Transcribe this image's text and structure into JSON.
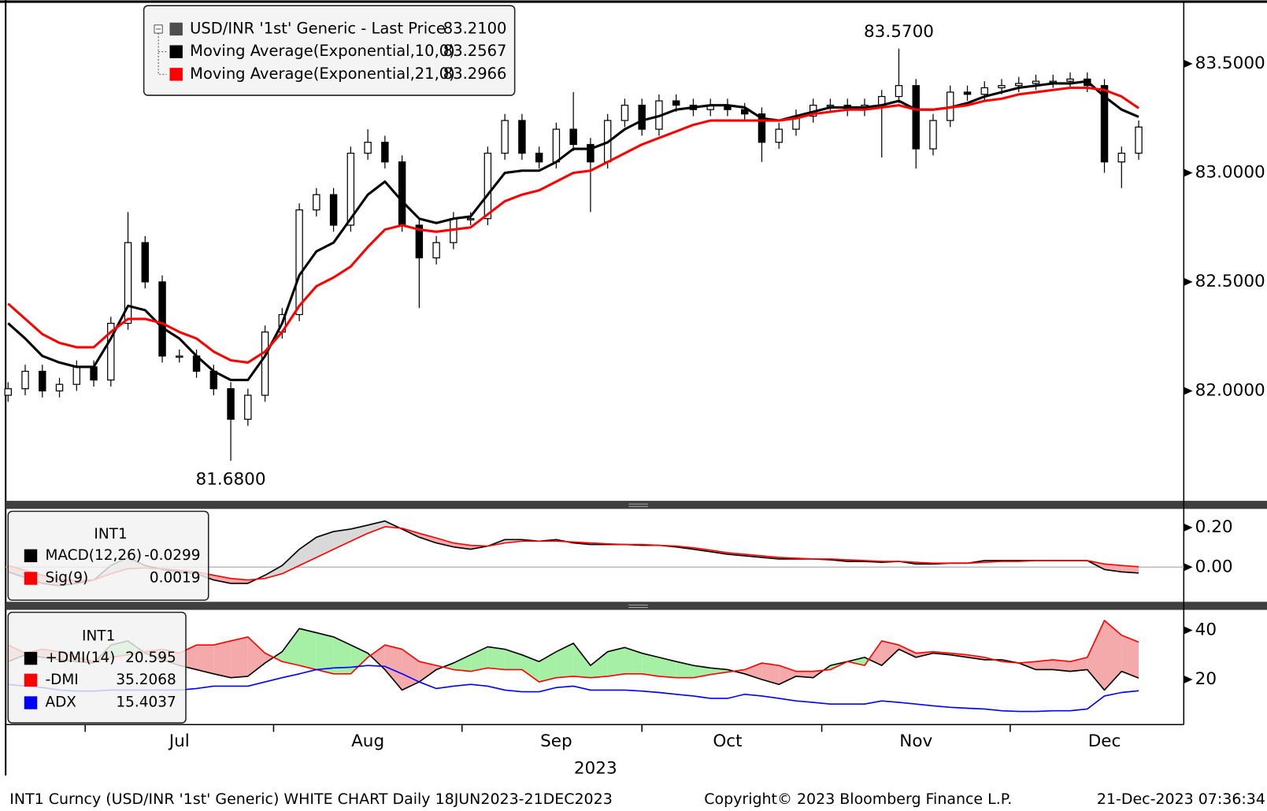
{
  "chart_data": [
    {
      "type": "candlestick",
      "categories": [
        null,
        null,
        null,
        null,
        null,
        null,
        null,
        null,
        null,
        null,
        "Jul",
        null,
        null,
        null,
        null,
        null,
        null,
        null,
        null,
        null,
        null,
        "Aug",
        null,
        null,
        null,
        null,
        null,
        null,
        null,
        null,
        null,
        null,
        "Sep",
        null,
        null,
        null,
        null,
        null,
        null,
        null,
        null,
        null,
        "Oct",
        null,
        null,
        null,
        null,
        null,
        null,
        null,
        null,
        null,
        null,
        "Nov",
        null,
        null,
        null,
        null,
        null,
        null,
        null,
        null,
        null,
        null,
        "Dec",
        null,
        null
      ],
      "x_label": "2023",
      "ylim": [
        81.496,
        83.774
      ],
      "yticks": [
        {
          "value": 82,
          "label": "82.0000"
        },
        {
          "value": 82.5,
          "label": "82.5000"
        },
        {
          "value": 83,
          "label": "83.0000"
        },
        {
          "value": 83.5,
          "label": "83.5000"
        }
      ],
      "annotations": [
        {
          "label": "83.5700",
          "value": 83.57
        },
        {
          "label": "81.6800",
          "value": 81.68
        }
      ],
      "series": [
        {
          "name": "USD/INR '1st' Generic - Last Price",
          "color": "#4d4d4d",
          "last_label": "83.2100",
          "open": [
            81.98,
            82.01,
            82.09,
            82.0,
            82.03,
            82.11,
            82.05,
            82.31,
            82.68,
            82.5,
            82.16,
            82.16,
            82.09,
            82.01,
            81.87,
            81.98,
            82.27,
            82.35,
            82.83,
            82.9,
            82.76,
            83.09,
            83.14,
            83.05,
            82.76,
            82.61,
            82.68,
            82.79,
            82.79,
            83.09,
            83.24,
            83.09,
            83.05,
            83.2,
            83.13,
            83.05,
            83.24,
            83.31,
            83.2,
            83.33,
            83.31,
            83.29,
            83.31,
            83.29,
            83.27,
            83.14,
            83.2,
            83.26,
            83.31,
            83.31,
            83.29,
            83.31,
            83.35,
            83.4,
            83.11,
            83.24,
            83.37,
            83.36,
            83.39,
            83.4,
            83.41,
            83.42,
            83.42,
            83.43,
            83.4,
            83.05,
            83.09
          ],
          "high": [
            82.04,
            82.12,
            82.12,
            82.06,
            82.14,
            82.14,
            82.34,
            82.82,
            82.71,
            82.53,
            82.19,
            82.19,
            82.12,
            82.04,
            82.01,
            82.3,
            82.38,
            82.86,
            82.93,
            82.93,
            83.12,
            83.2,
            83.17,
            83.08,
            82.79,
            82.71,
            82.82,
            82.82,
            83.12,
            83.27,
            83.27,
            83.12,
            83.23,
            83.37,
            83.16,
            83.27,
            83.34,
            83.34,
            83.36,
            83.36,
            83.34,
            83.34,
            83.34,
            83.32,
            83.3,
            83.23,
            83.29,
            83.34,
            83.34,
            83.34,
            83.34,
            83.38,
            83.57,
            83.43,
            83.27,
            83.4,
            83.4,
            83.42,
            83.43,
            83.44,
            83.45,
            83.45,
            83.46,
            83.46,
            83.43,
            83.12,
            83.24
          ],
          "low": [
            81.95,
            81.98,
            81.97,
            81.97,
            82.0,
            82.02,
            82.02,
            82.28,
            82.47,
            82.13,
            82.13,
            82.06,
            81.98,
            81.68,
            81.84,
            81.95,
            82.24,
            82.32,
            82.8,
            82.73,
            82.73,
            83.06,
            83.02,
            82.73,
            82.38,
            82.58,
            82.65,
            82.76,
            82.76,
            83.06,
            83.06,
            83.02,
            83.02,
            83.1,
            82.82,
            83.02,
            83.21,
            83.17,
            83.17,
            83.28,
            83.26,
            83.26,
            83.26,
            83.24,
            83.05,
            83.11,
            83.17,
            83.23,
            83.28,
            83.26,
            83.26,
            83.07,
            83.32,
            83.02,
            83.08,
            83.21,
            83.33,
            83.33,
            83.36,
            83.37,
            83.38,
            83.39,
            83.39,
            83.37,
            83.0,
            82.93,
            83.06
          ],
          "close": [
            82.01,
            82.09,
            82.0,
            82.03,
            82.11,
            82.05,
            82.31,
            82.68,
            82.5,
            82.16,
            82.16,
            82.09,
            82.01,
            81.87,
            81.98,
            82.27,
            82.35,
            82.83,
            82.9,
            82.76,
            83.09,
            83.14,
            83.05,
            82.76,
            82.61,
            82.68,
            82.79,
            82.79,
            83.09,
            83.24,
            83.09,
            83.05,
            83.2,
            83.13,
            83.05,
            83.24,
            83.31,
            83.2,
            83.33,
            83.31,
            83.29,
            83.31,
            83.29,
            83.27,
            83.14,
            83.2,
            83.26,
            83.31,
            83.31,
            83.29,
            83.31,
            83.35,
            83.4,
            83.11,
            83.24,
            83.37,
            83.36,
            83.39,
            83.4,
            83.41,
            83.42,
            83.42,
            83.43,
            83.4,
            83.05,
            83.09,
            83.21
          ]
        },
        {
          "name": "Moving Average(Exponential,10,0)",
          "color": "#000000",
          "last_label": "83.2567",
          "values": [
            82.31,
            82.24,
            82.16,
            82.13,
            82.11,
            82.11,
            82.24,
            82.39,
            82.37,
            82.29,
            82.24,
            82.16,
            82.09,
            82.05,
            82.05,
            82.16,
            82.31,
            82.53,
            82.64,
            82.68,
            82.79,
            82.9,
            82.96,
            82.87,
            82.79,
            82.77,
            82.79,
            82.8,
            82.9,
            83.0,
            83.01,
            83.01,
            83.05,
            83.11,
            83.11,
            83.14,
            83.2,
            83.24,
            83.26,
            83.29,
            83.3,
            83.31,
            83.31,
            83.3,
            83.25,
            83.24,
            83.26,
            83.28,
            83.3,
            83.3,
            83.3,
            83.31,
            83.33,
            83.29,
            83.29,
            83.3,
            83.32,
            83.35,
            83.37,
            83.39,
            83.4,
            83.41,
            83.41,
            83.42,
            83.35,
            83.29,
            83.2567
          ]
        },
        {
          "name": "Moving Average(Exponential,21,0)",
          "color": "#ff0000",
          "last_label": "83.2966",
          "values": [
            82.4,
            82.33,
            82.26,
            82.22,
            82.2,
            82.2,
            82.27,
            82.33,
            82.33,
            82.31,
            82.27,
            82.24,
            82.18,
            82.14,
            82.13,
            82.18,
            82.27,
            82.39,
            82.48,
            82.52,
            82.57,
            82.66,
            82.74,
            82.76,
            82.74,
            82.73,
            82.74,
            82.75,
            82.81,
            82.87,
            82.9,
            82.92,
            82.96,
            83.0,
            83.01,
            83.05,
            83.09,
            83.13,
            83.16,
            83.19,
            83.22,
            83.24,
            83.24,
            83.24,
            83.24,
            83.24,
            83.25,
            83.27,
            83.28,
            83.29,
            83.29,
            83.3,
            83.31,
            83.29,
            83.29,
            83.3,
            83.31,
            83.33,
            83.34,
            83.36,
            83.37,
            83.38,
            83.39,
            83.39,
            83.38,
            83.35,
            83.2966
          ]
        }
      ]
    },
    {
      "type": "line",
      "legend_title": "INT1",
      "ylim": [
        -0.175,
        0.294
      ],
      "yticks": [
        {
          "value": 0.2,
          "label": "0.20"
        },
        {
          "value": 0,
          "label": "0.00"
        }
      ],
      "zero_line": true,
      "fill_colors": [
        "#d9d9d9",
        "#f4aaaa"
      ],
      "series": [
        {
          "name": "MACD(12,26)",
          "color": "#000000",
          "last_label": "-0.0299",
          "values": [
            -0.024,
            -0.053,
            -0.082,
            -0.094,
            -0.082,
            -0.065,
            0.008,
            0.049,
            0.008,
            -0.012,
            -0.024,
            -0.033,
            -0.065,
            -0.082,
            -0.082,
            -0.041,
            0.008,
            0.09,
            0.151,
            0.18,
            0.192,
            0.212,
            0.233,
            0.192,
            0.151,
            0.122,
            0.102,
            0.09,
            0.106,
            0.139,
            0.139,
            0.131,
            0.139,
            0.122,
            0.114,
            0.114,
            0.114,
            0.11,
            0.11,
            0.102,
            0.09,
            0.078,
            0.065,
            0.057,
            0.049,
            0.041,
            0.041,
            0.041,
            0.037,
            0.029,
            0.029,
            0.024,
            0.029,
            0.016,
            0.016,
            0.02,
            0.02,
            0.033,
            0.033,
            0.033,
            0.033,
            0.033,
            0.033,
            0.033,
            -0.012,
            -0.024,
            -0.0299
          ]
        },
        {
          "name": "Sig(9)",
          "color": "#ff0000",
          "last_label": "0.0019",
          "values": [
            0.008,
            -0.016,
            -0.041,
            -0.061,
            -0.069,
            -0.065,
            -0.033,
            -0.008,
            -0.004,
            -0.008,
            -0.016,
            -0.024,
            -0.041,
            -0.057,
            -0.065,
            -0.057,
            -0.033,
            0.008,
            0.049,
            0.09,
            0.131,
            0.171,
            0.204,
            0.196,
            0.171,
            0.147,
            0.122,
            0.11,
            0.106,
            0.122,
            0.131,
            0.131,
            0.131,
            0.127,
            0.122,
            0.118,
            0.114,
            0.114,
            0.11,
            0.106,
            0.098,
            0.086,
            0.073,
            0.065,
            0.057,
            0.049,
            0.045,
            0.041,
            0.041,
            0.037,
            0.033,
            0.029,
            0.029,
            0.024,
            0.02,
            0.02,
            0.02,
            0.024,
            0.029,
            0.029,
            0.033,
            0.033,
            0.033,
            0.033,
            0.016,
            0.008,
            0.0019
          ]
        }
      ]
    },
    {
      "type": "line",
      "legend_title": "INT1",
      "ylim": [
        1.67,
        48.3
      ],
      "yticks": [
        40,
        20
      ],
      "zero_line": false,
      "fill_colors": [
        "#a6f0a6",
        "#f4aaaa"
      ],
      "series": [
        {
          "name": "+DMI(14)",
          "color": "#000000",
          "last_label": "20.595",
          "values": [
            27.3,
            30,
            29,
            28,
            27.3,
            26.7,
            34,
            35.7,
            30.7,
            28,
            25.7,
            24,
            22.3,
            20.7,
            21.3,
            26.7,
            31.3,
            40.7,
            39,
            37.3,
            34,
            30.7,
            24,
            15.7,
            19,
            24,
            26.7,
            30,
            33.3,
            32.3,
            30,
            27.3,
            31.3,
            34.7,
            25.7,
            31.3,
            33,
            30.7,
            29,
            27.3,
            25.7,
            24.7,
            24,
            22.3,
            20,
            18,
            21.3,
            20.7,
            25.7,
            27.3,
            29,
            25.7,
            32.3,
            29,
            30.7,
            30,
            29,
            28,
            28,
            26.7,
            24,
            24,
            23.3,
            24,
            15.7,
            23.3,
            20.595
          ]
        },
        {
          "name": "-DMI",
          "color": "#ff0000",
          "last_label": "35.2068",
          "values": [
            34,
            30.7,
            32.3,
            31.3,
            29,
            27.3,
            29,
            30,
            31.3,
            32.3,
            30.7,
            34,
            34,
            35.7,
            37.3,
            30.7,
            27.3,
            25.7,
            24,
            22.3,
            22.3,
            29,
            34,
            32.3,
            27.3,
            25.7,
            24,
            23.3,
            24.7,
            24,
            24,
            19,
            20.7,
            21.3,
            20.7,
            21.3,
            22.3,
            22.3,
            21.3,
            20.7,
            20.7,
            22,
            23,
            24,
            26.7,
            25.7,
            23.3,
            23.3,
            24,
            27.3,
            25.7,
            35.7,
            34,
            30.7,
            31.3,
            30.7,
            30,
            29,
            27.3,
            26.7,
            27.3,
            28,
            27.3,
            29,
            44,
            38,
            35.2068
          ]
        },
        {
          "name": "ADX",
          "color": "#0000ff",
          "last_label": "15.4037",
          "values": [
            18,
            17.3,
            16.7,
            15.7,
            15.3,
            15.3,
            15.7,
            15.7,
            15.7,
            15.7,
            15.7,
            16.3,
            17.3,
            17.3,
            17.3,
            19,
            20.7,
            22.3,
            24,
            24.7,
            25,
            25.7,
            25.3,
            22.3,
            19,
            16.3,
            17.3,
            18,
            17.3,
            15.7,
            15,
            15,
            16.7,
            17.3,
            15.7,
            15.7,
            15.7,
            15.3,
            14.7,
            14,
            13.3,
            12.3,
            12.3,
            14,
            13.3,
            12.3,
            11.3,
            10.7,
            10,
            10,
            10,
            11.3,
            10.7,
            10,
            9.3,
            8.7,
            8.3,
            8,
            7.3,
            7,
            7,
            7.3,
            7.3,
            8,
            13.3,
            14.7,
            15.4037
          ]
        }
      ]
    }
  ],
  "footer": {
    "left": "INT1 Curncy (USD/INR '1st' Generic) WHITE CHART  Daily 18JUN2023-21DEC2023",
    "center": "Copyright© 2023 Bloomberg Finance L.P.",
    "right": "21-Dec-2023 07:36:34"
  }
}
